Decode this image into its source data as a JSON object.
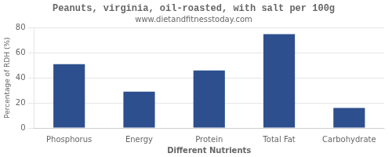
{
  "chart_data": {
    "type": "bar",
    "title": "Peanuts, virginia, oil-roasted, with salt per 100g",
    "subtitle": "www.dietandfitnesstoday.com",
    "xlabel": "Different Nutrients",
    "ylabel": "Percentage of RDH (%)",
    "categories": [
      "Phosphorus",
      "Energy",
      "Protein",
      "Total Fat",
      "Carbohydrate"
    ],
    "values": [
      51,
      29,
      46,
      75,
      16
    ],
    "color": "#2d4f8e",
    "ylim": [
      0,
      80
    ],
    "yticks": [
      0,
      20,
      40,
      60,
      80
    ],
    "grid": true
  }
}
